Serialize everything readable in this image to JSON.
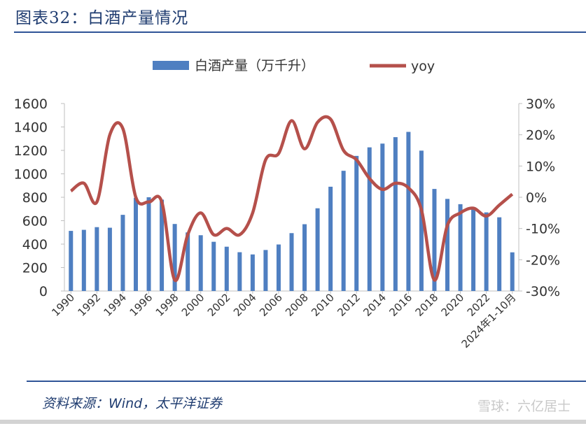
{
  "header": {
    "title": "图表32：白酒产量情况"
  },
  "footer": {
    "source": "资料来源：Wind，太平洋证券",
    "watermark": "雪球：六亿居士"
  },
  "colors": {
    "bar": "#4f7fc1",
    "line": "#b5504b",
    "title": "#1f3c70",
    "rule": "#2f5497"
  },
  "chart_data": {
    "type": "bar",
    "legend_position": "top",
    "grid": false,
    "categories": [
      "1990",
      "1991",
      "1992",
      "1993",
      "1994",
      "1995",
      "1996",
      "1997",
      "1998",
      "1999",
      "2000",
      "2001",
      "2002",
      "2003",
      "2004",
      "2005",
      "2006",
      "2007",
      "2008",
      "2009",
      "2010",
      "2011",
      "2012",
      "2013",
      "2014",
      "2015",
      "2016",
      "2017",
      "2018",
      "2019",
      "2020",
      "2021",
      "2022",
      "2023",
      "2024年1-10月"
    ],
    "x_tick_labels": [
      "1990",
      "1992",
      "1994",
      "1996",
      "1998",
      "2000",
      "2002",
      "2004",
      "2006",
      "2008",
      "2010",
      "2012",
      "2014",
      "2016",
      "2018",
      "2020",
      "2022",
      "2024年1-10月"
    ],
    "y_left": {
      "ticks": [
        "0",
        "200",
        "400",
        "600",
        "800",
        "1000",
        "1200",
        "1400",
        "1600"
      ],
      "ylim": [
        0,
        1600
      ]
    },
    "y_right": {
      "ticks": [
        "-30%",
        "-20%",
        "-10%",
        "0%",
        "10%",
        "20%",
        "30%"
      ],
      "ylim": [
        -30,
        30
      ]
    },
    "series": [
      {
        "name": "白酒产量（万千升）",
        "type": "bar",
        "axis": "left",
        "values": [
          513,
          522,
          545,
          540,
          650,
          795,
          800,
          780,
          572,
          500,
          476,
          420,
          378,
          331,
          312,
          350,
          397,
          494,
          570,
          706,
          890,
          1026,
          1153,
          1226,
          1258,
          1313,
          1358,
          1198,
          871,
          786,
          741,
          716,
          671,
          629,
          330
        ]
      },
      {
        "name": "yoy",
        "type": "line",
        "axis": "right",
        "values": [
          2,
          4.5,
          -1.5,
          20,
          22,
          0,
          -1.5,
          -1.5,
          -26.5,
          -12,
          -5,
          -12,
          -10,
          -12,
          -5,
          12,
          14,
          24.5,
          15.5,
          24,
          25,
          15,
          12,
          6,
          2.5,
          4.5,
          3,
          -4,
          -26.5,
          -9,
          -5,
          -3.5,
          -6,
          -2.5,
          1
        ]
      }
    ]
  }
}
